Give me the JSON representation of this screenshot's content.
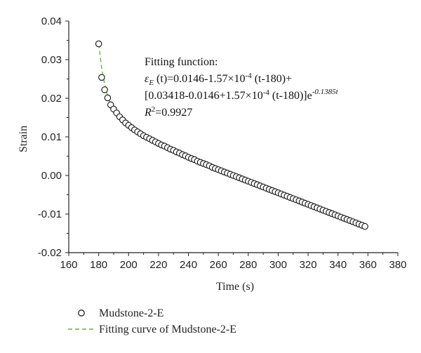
{
  "chart_data": {
    "type": "scatter",
    "xlabel": "Time (s)",
    "ylabel": "Strain",
    "xlim": [
      160,
      380
    ],
    "ylim": [
      -0.02,
      0.04
    ],
    "x_ticks": [
      "160",
      "180",
      "200",
      "220",
      "240",
      "260",
      "280",
      "300",
      "320",
      "340",
      "360",
      "380"
    ],
    "y_ticks": [
      "-0.02",
      "-0.01",
      "0.00",
      "0.01",
      "0.02",
      "0.03",
      "0.04"
    ],
    "annotation": {
      "line1": "Fitting function:",
      "line2_prefix": "ε",
      "line2_sub": "E",
      "line2_mid": " (t)=0.0146-1.57×10",
      "line2_exp": "-4",
      "line2_suffix": " (t-180)+",
      "line3_main": "[0.03418-0.0146+1.57×10",
      "line3_exp1": "-4",
      "line3_mid": " (t-180)]e",
      "line3_exp2": "-0.1385t",
      "line4_prefix": "R",
      "line4_sup": "2",
      "line4_suffix": "=0.9927"
    },
    "series": [
      {
        "name": "Mudstone-2-E",
        "style": "open-circle",
        "color": "#222222",
        "x": [
          180,
          182,
          184,
          186,
          188,
          190,
          192,
          194,
          196,
          198,
          200,
          202,
          204,
          206,
          208,
          210,
          212,
          214,
          216,
          218,
          220,
          222,
          224,
          226,
          228,
          230,
          232,
          234,
          236,
          238,
          240,
          242,
          244,
          246,
          248,
          250,
          252,
          254,
          256,
          258,
          260,
          262,
          264,
          266,
          268,
          270,
          272,
          274,
          276,
          278,
          280,
          282,
          284,
          286,
          288,
          290,
          292,
          294,
          296,
          298,
          300,
          302,
          304,
          306,
          308,
          310,
          312,
          314,
          316,
          318,
          320,
          322,
          324,
          326,
          328,
          330,
          332,
          334,
          336,
          338,
          340,
          342,
          344,
          346,
          348,
          350,
          352,
          354,
          356,
          358
        ],
        "y": [
          0.0341,
          0.0254,
          0.0222,
          0.0201,
          0.0183,
          0.0172,
          0.0162,
          0.0152,
          0.0144,
          0.0136,
          0.013,
          0.0124,
          0.0118,
          0.0113,
          0.0108,
          0.0103,
          0.0099,
          0.0095,
          0.0091,
          0.0087,
          0.0083,
          0.0079,
          0.0076,
          0.0072,
          0.0068,
          0.0065,
          0.0061,
          0.0058,
          0.0054,
          0.0051,
          0.0047,
          0.0044,
          0.0041,
          0.0037,
          0.0034,
          0.0031,
          0.0028,
          0.0025,
          0.0021,
          0.0018,
          0.0015,
          0.0012,
          0.0009,
          0.0006,
          0.0003,
          0.0,
          -0.0003,
          -0.0006,
          -0.0009,
          -0.0012,
          -0.0015,
          -0.0018,
          -0.0021,
          -0.0024,
          -0.0027,
          -0.003,
          -0.0033,
          -0.0036,
          -0.0039,
          -0.0042,
          -0.0045,
          -0.0048,
          -0.0051,
          -0.0054,
          -0.0057,
          -0.006,
          -0.0063,
          -0.0066,
          -0.0069,
          -0.0072,
          -0.0075,
          -0.0078,
          -0.0081,
          -0.0084,
          -0.0087,
          -0.009,
          -0.0093,
          -0.0096,
          -0.0099,
          -0.0102,
          -0.0105,
          -0.0108,
          -0.0111,
          -0.0114,
          -0.0117,
          -0.012,
          -0.0123,
          -0.0126,
          -0.0129,
          -0.0132
        ]
      },
      {
        "name": "Fitting curve of Mudstone-2-E",
        "style": "dashed-line",
        "color": "#6db33f",
        "x": [
          180,
          182,
          184,
          186,
          188,
          190,
          192,
          194,
          196,
          198,
          200,
          205,
          210,
          215,
          220,
          230,
          240,
          250,
          260,
          270,
          280,
          290,
          300,
          310,
          320,
          330,
          340,
          350,
          360
        ],
        "y": [
          0.0341,
          0.0279,
          0.0236,
          0.0206,
          0.0185,
          0.017,
          0.0159,
          0.0151,
          0.0144,
          0.0138,
          0.0133,
          0.0121,
          0.0108,
          0.0096,
          0.0084,
          0.0066,
          0.005,
          0.0034,
          0.0018,
          0.0002,
          -0.0014,
          -0.003,
          -0.0046,
          -0.0062,
          -0.0078,
          -0.0093,
          -0.0109,
          -0.0125,
          -0.0141
        ]
      }
    ]
  }
}
